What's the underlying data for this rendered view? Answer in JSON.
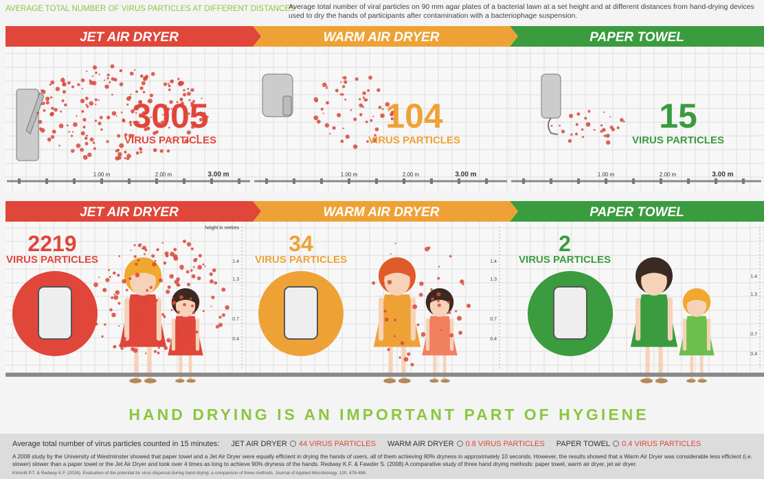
{
  "header": {
    "title": "AVERAGE TOTAL NUMBER OF VIRUS PARTICLES AT DIFFERENT DISTANCES",
    "description": "Average total number of viral particles on 90 mm agar plates of a bacterial lawn at a set height and at different distances from hand-drying devices used to dry the hands of participants after contamination with a bacteriophage suspension."
  },
  "distance_panels": [
    {
      "label": "JET AIR DRYER",
      "count": 3005,
      "unit": "VIRUS PARTICLES"
    },
    {
      "label": "WARM AIR DRYER",
      "count": 104,
      "unit": "VIRUS PARTICLES"
    },
    {
      "label": "PAPER TOWEL",
      "count": 15,
      "unit": "VIRUS PARTICLES"
    }
  ],
  "distance_scale": [
    "1.00 m",
    "2.00 m",
    "3.00 m"
  ],
  "height_axis_label": "height in metres",
  "height_panels": [
    {
      "label": "JET AIR DRYER",
      "count": 2219,
      "unit": "VIRUS PARTICLES",
      "heights": [
        1.4,
        1.3,
        0.7,
        0.4
      ]
    },
    {
      "label": "WARM AIR DRYER",
      "count": 34,
      "unit": "VIRUS PARTICLES",
      "heights": [
        1.4,
        1.3,
        0.7,
        0.4
      ]
    },
    {
      "label": "PAPER TOWEL",
      "count": 2,
      "unit": "VIRUS PARTICLES",
      "heights": [
        1.4,
        1.3,
        0.7,
        0.4
      ]
    }
  ],
  "slogan": "HAND DRYING IS AN IMPORTANT PART OF HYGIENE",
  "footer": {
    "intro": "Average total number of virus particles counted in 15 minutes:",
    "items": [
      {
        "name": "JET AIR DRYER",
        "value": "44 VIRUS PARTICLES"
      },
      {
        "name": "WARM AIR DRYER",
        "value": "0.8 VIRUS PARTICLES"
      },
      {
        "name": "PAPER TOWEL",
        "value": "0.4 VIRUS PARTICLES"
      }
    ],
    "paragraph": "A 2008 study by the University of Westminster showed that paper towel and a Jet Air Dryer were equally efficient in drying the hands of users, all of them achieving 90% dryness in approximately 10 seconds. However, the results showed that a Warm Air Dryer was considerable less efficient (i.e. slower) slower than a paper towel or the Jet Air Dryer and took over 4 times as long to achieve 90% dryness of the hands. Redway K.F. & Fawder S. (2008)  A comparative study of three hand drying methods: paper towel, warm air dryer, jet air dryer.",
    "citation": "Kimmitt P.T. & Redway K.F. (2016). Evaluation of the potential for virus dispersal during hand drying: a comparison of three methods. Journal of Applied Microbiology. 120, 478-486."
  }
}
